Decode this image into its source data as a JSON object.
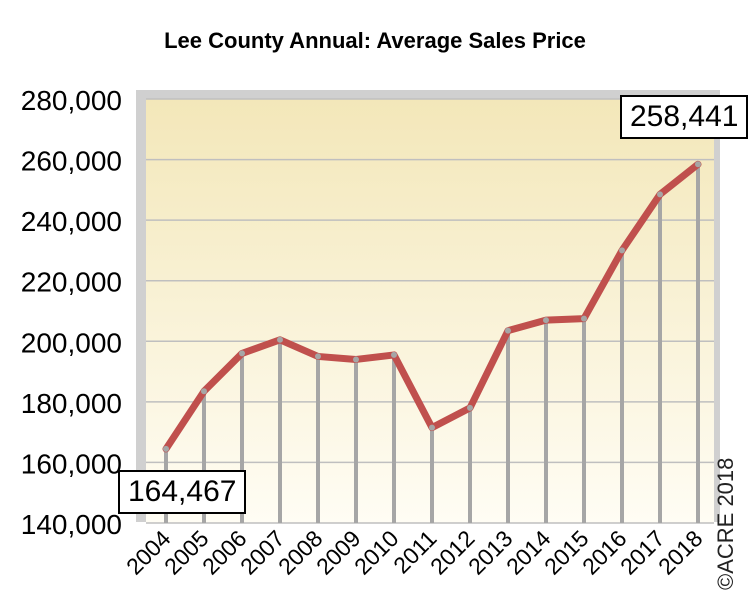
{
  "chart_data": {
    "type": "line",
    "title": "Lee County Annual: Average Sales Price",
    "categories": [
      "2004",
      "2005",
      "2006",
      "2007",
      "2008",
      "2009",
      "2010",
      "2011",
      "2012",
      "2013",
      "2014",
      "2015",
      "2016",
      "2017",
      "2018"
    ],
    "series": [
      {
        "values": [
          164467,
          183500,
          196000,
          200500,
          195000,
          194000,
          195500,
          171500,
          178000,
          203500,
          207000,
          207500,
          230000,
          248500,
          258441
        ]
      }
    ],
    "yticks": [
      "140,000",
      "160,000",
      "180,000",
      "200,000",
      "220,000",
      "240,000",
      "260,000",
      "280,000"
    ],
    "ylim": [
      140000,
      280000
    ],
    "grid": true,
    "line_color": "#c0504d",
    "drop_line_color": "#a6a6a6",
    "plot_bg_top": "#f3e7b9",
    "plot_bg_bottom": "#fffdf4",
    "callouts": {
      "first": "164,467",
      "last": "258,441"
    },
    "copyright": "©ACRE 2018"
  }
}
